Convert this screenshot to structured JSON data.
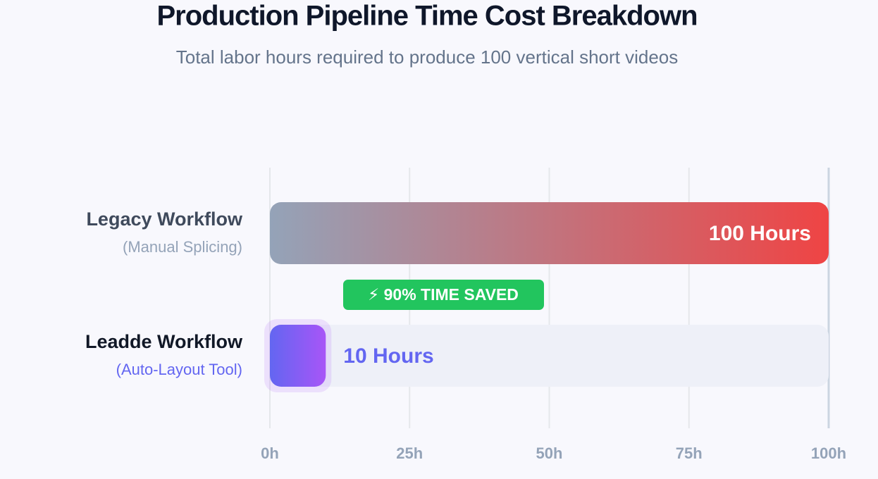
{
  "chart_data": {
    "type": "bar",
    "orientation": "horizontal",
    "title": "Production Pipeline Time Cost Breakdown",
    "subtitle": "Total labor hours required to produce 100 vertical short videos",
    "categories": [
      "Legacy Workflow",
      "Leadde Workflow"
    ],
    "category_sublabels": [
      "(Manual Splicing)",
      "(Auto-Layout Tool)"
    ],
    "values": [
      100,
      10
    ],
    "value_labels": [
      "100 Hours",
      "10 Hours"
    ],
    "bar_gradients": [
      [
        "#94a3b8",
        "#ef4444"
      ],
      [
        "#6366f1",
        "#a855f7"
      ]
    ],
    "annotation": "⚡ 90% TIME SAVED",
    "xlim": [
      0,
      100
    ],
    "xticks": [
      {
        "value": 0,
        "label": "0h"
      },
      {
        "value": 25,
        "label": "25h"
      },
      {
        "value": 50,
        "label": "50h"
      },
      {
        "value": 75,
        "label": "75h"
      },
      {
        "value": 100,
        "label": "100h"
      }
    ],
    "grid": true
  }
}
